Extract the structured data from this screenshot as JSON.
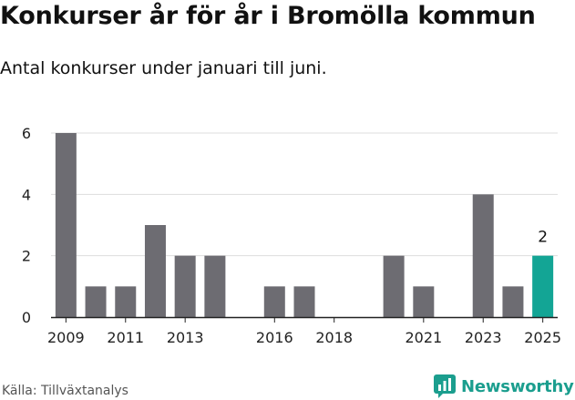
{
  "header": {
    "title": "Konkurser år för år i Bromölla kommun",
    "subtitle": "Antal konkurser under januari till juni."
  },
  "footer": {
    "source": "Källa: Tillväxtanalys",
    "brand": "Newsworthy"
  },
  "colors": {
    "bar": "#6d6c72",
    "highlight": "#13a595",
    "grid": "#dddddd",
    "axis": "#222222",
    "brand": "#1b9e8e"
  },
  "chart_data": {
    "type": "bar",
    "categories": [
      "2009",
      "2010",
      "2011",
      "2012",
      "2013",
      "2014",
      "2015",
      "2016",
      "2017",
      "2018",
      "2019",
      "2020",
      "2021",
      "2022",
      "2023",
      "2024",
      "2025"
    ],
    "values": [
      6,
      1,
      1,
      3,
      2,
      2,
      0,
      1,
      1,
      0,
      0,
      2,
      1,
      0,
      4,
      1,
      2
    ],
    "tick_labels": [
      "2009",
      "2011",
      "2013",
      "2016",
      "2018",
      "2021",
      "2023",
      "2025"
    ],
    "highlight": {
      "category": "2025",
      "label": "2"
    },
    "ylim": [
      0,
      6
    ],
    "yticks": [
      0,
      2,
      4,
      6
    ],
    "grid": true,
    "title": "Konkurser år för år i Bromölla kommun",
    "xlabel": "",
    "ylabel": ""
  }
}
